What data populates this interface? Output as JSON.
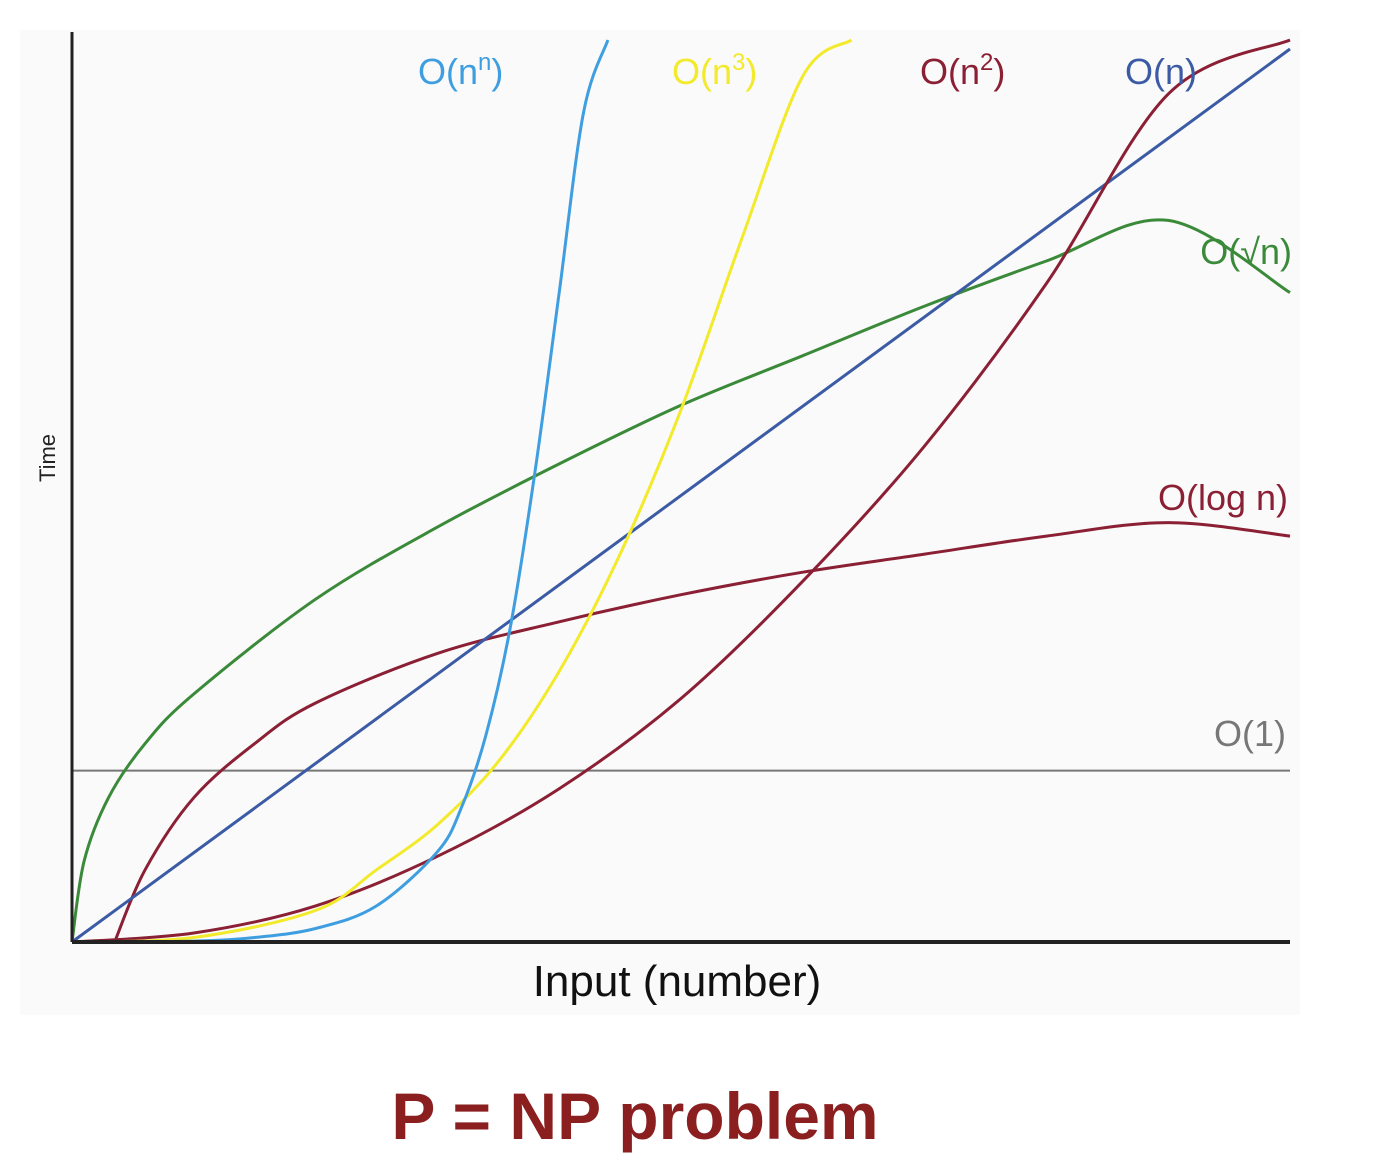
{
  "caption": "P = NP problem",
  "chart_data": {
    "type": "line",
    "xlabel": "Input (number)",
    "ylabel": "Time",
    "xlim": [
      0,
      10
    ],
    "ylim": [
      0,
      10
    ],
    "grid": false,
    "legend": "inline labels at line ends",
    "series": [
      {
        "name": "O(1)",
        "key": "o1",
        "color": "#777777",
        "x": [
          0,
          10
        ],
        "y": [
          1.9,
          1.9
        ]
      },
      {
        "name": "O(log n)",
        "key": "ologn",
        "color": "#8b2035",
        "x": [
          0.35,
          0.6,
          1,
          1.5,
          2,
          3,
          4,
          5,
          6,
          7,
          8,
          9,
          10
        ],
        "y": [
          0,
          0.8,
          1.6,
          2.2,
          2.65,
          3.2,
          3.55,
          3.85,
          4.1,
          4.3,
          4.5,
          4.65,
          4.5
        ]
      },
      {
        "name": "O(√n)",
        "key": "osqrtn",
        "color": "#3a8a3a",
        "x": [
          0,
          0.1,
          0.3,
          0.6,
          1,
          2,
          3,
          4,
          5,
          6,
          7,
          8,
          9,
          10
        ],
        "y": [
          0,
          0.9,
          1.6,
          2.2,
          2.75,
          3.8,
          4.6,
          5.3,
          5.95,
          6.5,
          7.05,
          7.55,
          8.0,
          7.2
        ]
      },
      {
        "name": "O(n)",
        "key": "on",
        "color": "#3b5ba5",
        "x": [
          0,
          10
        ],
        "y": [
          0,
          9.9
        ]
      },
      {
        "name": "O(n²)",
        "key": "on2",
        "color": "#8b2035",
        "x": [
          0,
          1,
          2,
          3,
          4,
          5,
          6,
          7,
          8,
          9,
          10
        ],
        "y": [
          0,
          0.1,
          0.4,
          0.95,
          1.7,
          2.7,
          4.0,
          5.5,
          7.3,
          9.4,
          10
        ]
      },
      {
        "name": "O(n³)",
        "key": "on3",
        "color": "#f2ea2a",
        "x": [
          0,
          1,
          2,
          2.5,
          3,
          3.5,
          4,
          4.5,
          5,
          5.5,
          6,
          6.4
        ],
        "y": [
          0,
          0.05,
          0.35,
          0.8,
          1.3,
          2.0,
          3.0,
          4.3,
          5.9,
          7.8,
          9.6,
          10
        ]
      },
      {
        "name": "O(nⁿ)",
        "key": "onn",
        "color": "#3f9ee0",
        "x": [
          0,
          1,
          1.5,
          2,
          2.5,
          3,
          3.2,
          3.4,
          3.6,
          3.8,
          4,
          4.2,
          4.4
        ],
        "y": [
          0,
          0.01,
          0.05,
          0.15,
          0.4,
          1.0,
          1.5,
          2.3,
          3.5,
          5.2,
          7.2,
          9.2,
          10
        ]
      }
    ],
    "labels": [
      {
        "key": "onn",
        "base": "O(n",
        "sup": "n",
        "tail": ")"
      },
      {
        "key": "on3",
        "base": "O(n",
        "sup": "3",
        "tail": ")"
      },
      {
        "key": "on2",
        "base": "O(n",
        "sup": "2",
        "tail": ")"
      },
      {
        "key": "on",
        "base": "O(n)",
        "sup": "",
        "tail": ""
      },
      {
        "key": "osqrtn",
        "base": "O(√n)",
        "sup": "",
        "tail": ""
      },
      {
        "key": "ologn",
        "base": "O(log n)",
        "sup": "",
        "tail": ""
      },
      {
        "key": "o1",
        "base": "O(1)",
        "sup": "",
        "tail": ""
      }
    ]
  }
}
